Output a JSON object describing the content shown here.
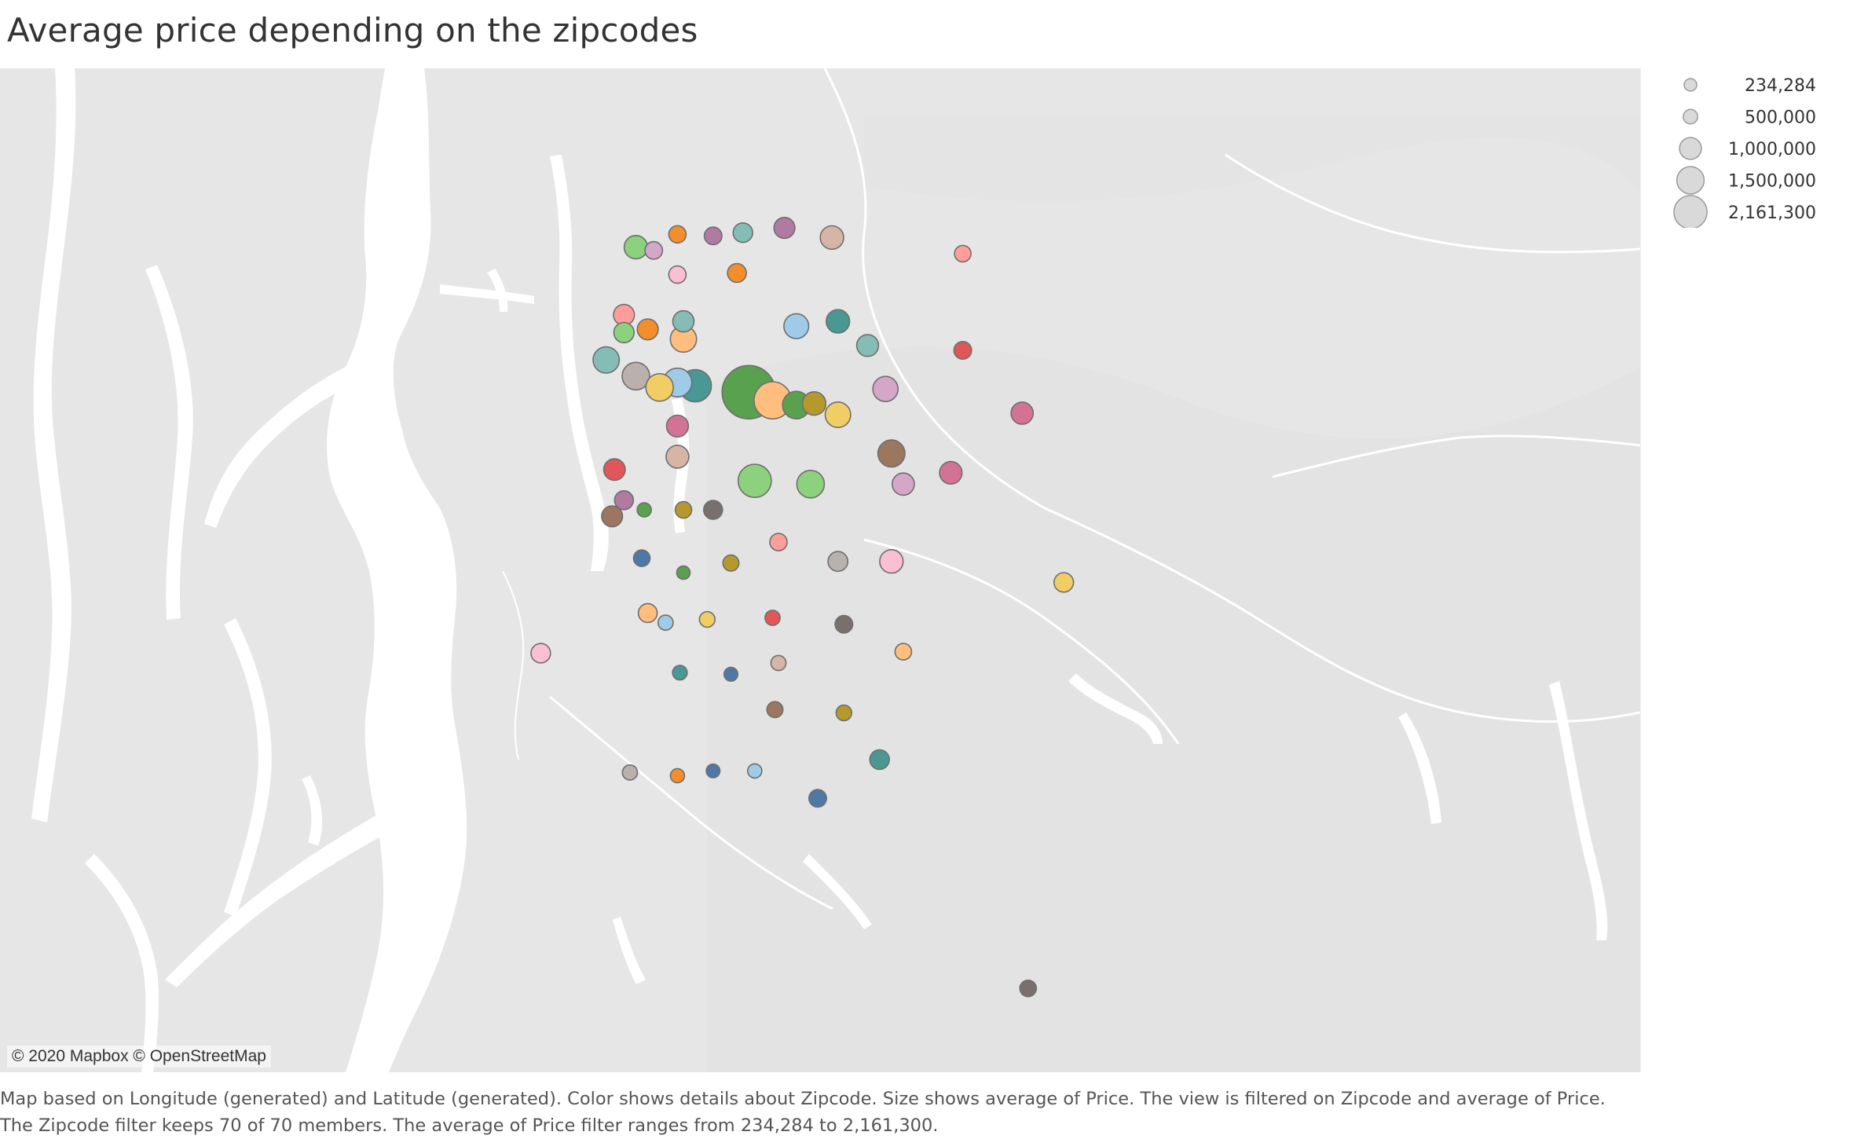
{
  "title": "Average price depending on the zipcodes",
  "attribution": "© 2020 Mapbox © OpenStreetMap",
  "caption": [
    "Map based on Longitude (generated) and Latitude (generated).  Color shows details about Zipcode.  Size shows average of Price. The view is filtered on Zipcode and average of Price.",
    "The Zipcode filter keeps 70 of 70 members. The average of Price filter ranges from 234,284 to 2,161,300."
  ],
  "legend": {
    "title": "",
    "items": [
      {
        "label": "234,284",
        "value": 234284
      },
      {
        "label": "500,000",
        "value": 500000
      },
      {
        "label": "1,000,000",
        "value": 1000000
      },
      {
        "label": "1,500,000",
        "value": 1500000
      },
      {
        "label": "2,161,300",
        "value": 2161300
      }
    ]
  },
  "chart_data": {
    "type": "scatter",
    "title": "Average price depending on the zipcodes",
    "x_axis": "Longitude (generated)",
    "y_axis": "Latitude (generated)",
    "size_field": "Average of Price",
    "color_field": "Zipcode",
    "size_range": [
      234284,
      2161300
    ],
    "points": [
      {
        "lon": -122.365,
        "lat": 47.7,
        "price": 500000,
        "color": "#8cd17d"
      },
      {
        "lon": -122.35,
        "lat": 47.698,
        "price": 330000,
        "color": "#d4a6c8"
      },
      {
        "lon": -122.33,
        "lat": 47.708,
        "price": 320000,
        "color": "#f28e2b"
      },
      {
        "lon": -122.3,
        "lat": 47.707,
        "price": 330000,
        "color": "#b07aa1"
      },
      {
        "lon": -122.275,
        "lat": 47.709,
        "price": 380000,
        "color": "#86bcb6"
      },
      {
        "lon": -122.24,
        "lat": 47.712,
        "price": 420000,
        "color": "#b07aa1"
      },
      {
        "lon": -122.2,
        "lat": 47.706,
        "price": 500000,
        "color": "#d7b5a6"
      },
      {
        "lon": -122.09,
        "lat": 47.696,
        "price": 300000,
        "color": "#ff9d9a"
      },
      {
        "lon": -122.33,
        "lat": 47.683,
        "price": 320000,
        "color": "#fabfd2"
      },
      {
        "lon": -122.28,
        "lat": 47.684,
        "price": 360000,
        "color": "#f28e2b"
      },
      {
        "lon": -122.375,
        "lat": 47.658,
        "price": 420000,
        "color": "#ff9d9a"
      },
      {
        "lon": -122.325,
        "lat": 47.654,
        "price": 430000,
        "color": "#86bcb6"
      },
      {
        "lon": -122.23,
        "lat": 47.651,
        "price": 550000,
        "color": "#a0cbe8"
      },
      {
        "lon": -122.195,
        "lat": 47.654,
        "price": 500000,
        "color": "#499894"
      },
      {
        "lon": -122.17,
        "lat": 47.639,
        "price": 450000,
        "color": "#86bcb6"
      },
      {
        "lon": -122.09,
        "lat": 47.636,
        "price": 330000,
        "color": "#e15759"
      },
      {
        "lon": -122.375,
        "lat": 47.647,
        "price": 400000,
        "color": "#8cd17d"
      },
      {
        "lon": -122.355,
        "lat": 47.649,
        "price": 420000,
        "color": "#f28e2b"
      },
      {
        "lon": -122.325,
        "lat": 47.643,
        "price": 600000,
        "color": "#ffbe7d"
      },
      {
        "lon": -122.39,
        "lat": 47.63,
        "price": 600000,
        "color": "#86bcb6"
      },
      {
        "lon": -122.365,
        "lat": 47.62,
        "price": 650000,
        "color": "#bab0ac"
      },
      {
        "lon": -122.345,
        "lat": 47.613,
        "price": 650000,
        "color": "#f1ce63"
      },
      {
        "lon": -122.33,
        "lat": 47.616,
        "price": 700000,
        "color": "#a0cbe8"
      },
      {
        "lon": -122.315,
        "lat": 47.614,
        "price": 850000,
        "color": "#499894"
      },
      {
        "lon": -122.27,
        "lat": 47.61,
        "price": 2161300,
        "color": "#59a14f"
      },
      {
        "lon": -122.25,
        "lat": 47.605,
        "price": 1100000,
        "color": "#ffbe7d"
      },
      {
        "lon": -122.23,
        "lat": 47.602,
        "price": 650000,
        "color": "#59a14f"
      },
      {
        "lon": -122.215,
        "lat": 47.603,
        "price": 500000,
        "color": "#b6992d"
      },
      {
        "lon": -122.195,
        "lat": 47.596,
        "price": 570000,
        "color": "#f1ce63"
      },
      {
        "lon": -122.155,
        "lat": 47.612,
        "price": 560000,
        "color": "#d4a6c8"
      },
      {
        "lon": -122.04,
        "lat": 47.597,
        "price": 460000,
        "color": "#d37295"
      },
      {
        "lon": -122.33,
        "lat": 47.589,
        "price": 450000,
        "color": "#d37295"
      },
      {
        "lon": -122.33,
        "lat": 47.57,
        "price": 480000,
        "color": "#d7b5a6"
      },
      {
        "lon": -122.15,
        "lat": 47.572,
        "price": 630000,
        "color": "#9d7660"
      },
      {
        "lon": -122.383,
        "lat": 47.562,
        "price": 440000,
        "color": "#e15759"
      },
      {
        "lon": -122.265,
        "lat": 47.555,
        "price": 900000,
        "color": "#8cd17d"
      },
      {
        "lon": -122.218,
        "lat": 47.553,
        "price": 650000,
        "color": "#8cd17d"
      },
      {
        "lon": -122.14,
        "lat": 47.553,
        "price": 460000,
        "color": "#d4a6c8"
      },
      {
        "lon": -122.1,
        "lat": 47.56,
        "price": 470000,
        "color": "#d37295"
      },
      {
        "lon": -122.375,
        "lat": 47.543,
        "price": 360000,
        "color": "#b07aa1"
      },
      {
        "lon": -122.385,
        "lat": 47.533,
        "price": 420000,
        "color": "#9d7660"
      },
      {
        "lon": -122.358,
        "lat": 47.537,
        "price": 250000,
        "color": "#59a14f"
      },
      {
        "lon": -122.325,
        "lat": 47.537,
        "price": 300000,
        "color": "#b6992d"
      },
      {
        "lon": -122.3,
        "lat": 47.537,
        "price": 360000,
        "color": "#79706e"
      },
      {
        "lon": -122.36,
        "lat": 47.507,
        "price": 300000,
        "color": "#4e79a7"
      },
      {
        "lon": -122.325,
        "lat": 47.498,
        "price": 234284,
        "color": "#59a14f"
      },
      {
        "lon": -122.285,
        "lat": 47.504,
        "price": 290000,
        "color": "#b6992d"
      },
      {
        "lon": -122.245,
        "lat": 47.517,
        "price": 320000,
        "color": "#ff9d9a"
      },
      {
        "lon": -122.195,
        "lat": 47.505,
        "price": 390000,
        "color": "#bab0ac"
      },
      {
        "lon": -122.15,
        "lat": 47.505,
        "price": 500000,
        "color": "#fabfd2"
      },
      {
        "lon": -122.005,
        "lat": 47.492,
        "price": 380000,
        "color": "#f1ce63"
      },
      {
        "lon": -122.355,
        "lat": 47.473,
        "price": 360000,
        "color": "#ffbe7d"
      },
      {
        "lon": -122.34,
        "lat": 47.467,
        "price": 270000,
        "color": "#a0cbe8"
      },
      {
        "lon": -122.305,
        "lat": 47.469,
        "price": 280000,
        "color": "#f1ce63"
      },
      {
        "lon": -122.25,
        "lat": 47.47,
        "price": 270000,
        "color": "#e15759"
      },
      {
        "lon": -122.19,
        "lat": 47.466,
        "price": 330000,
        "color": "#79706e"
      },
      {
        "lon": -122.445,
        "lat": 47.448,
        "price": 380000,
        "color": "#fabfd2"
      },
      {
        "lon": -122.14,
        "lat": 47.449,
        "price": 300000,
        "color": "#ffbe7d"
      },
      {
        "lon": -122.328,
        "lat": 47.436,
        "price": 260000,
        "color": "#499894"
      },
      {
        "lon": -122.285,
        "lat": 47.435,
        "price": 245000,
        "color": "#4e79a7"
      },
      {
        "lon": -122.245,
        "lat": 47.442,
        "price": 270000,
        "color": "#d7b5a6"
      },
      {
        "lon": -122.248,
        "lat": 47.413,
        "price": 290000,
        "color": "#9d7660"
      },
      {
        "lon": -122.19,
        "lat": 47.411,
        "price": 280000,
        "color": "#b6992d"
      },
      {
        "lon": -122.37,
        "lat": 47.374,
        "price": 270000,
        "color": "#bab0ac"
      },
      {
        "lon": -122.33,
        "lat": 47.372,
        "price": 250000,
        "color": "#f28e2b"
      },
      {
        "lon": -122.3,
        "lat": 47.375,
        "price": 240000,
        "color": "#4e79a7"
      },
      {
        "lon": -122.265,
        "lat": 47.375,
        "price": 250000,
        "color": "#a0cbe8"
      },
      {
        "lon": -122.16,
        "lat": 47.382,
        "price": 380000,
        "color": "#499894"
      },
      {
        "lon": -122.212,
        "lat": 47.358,
        "price": 330000,
        "color": "#4e79a7"
      },
      {
        "lon": -122.035,
        "lat": 47.24,
        "price": 300000,
        "color": "#79706e"
      }
    ]
  }
}
